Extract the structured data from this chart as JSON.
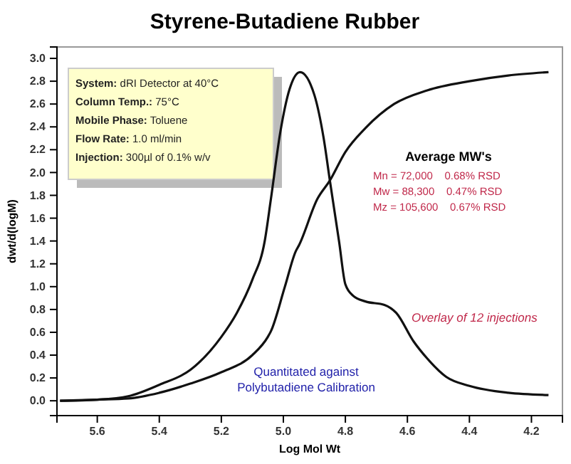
{
  "chart_data": {
    "type": "line",
    "title": "Styrene-Butadiene Rubber",
    "xlabel": "Log Mol Wt",
    "ylabel": "dwt/d(logM)",
    "xlim": [
      5.73,
      4.1
    ],
    "ylim": [
      -0.13,
      3.1
    ],
    "xticks": [
      {
        "value": 5.6,
        "label": "5.6"
      },
      {
        "value": 5.4,
        "label": "5.4"
      },
      {
        "value": 5.2,
        "label": "5.2"
      },
      {
        "value": 5.0,
        "label": "5.0"
      },
      {
        "value": 4.8,
        "label": "4.8"
      },
      {
        "value": 4.6,
        "label": "4.6"
      },
      {
        "value": 4.4,
        "label": "4.4"
      },
      {
        "value": 4.2,
        "label": "4.2"
      }
    ],
    "yticks": [
      {
        "value": 0,
        "label": "0.0"
      },
      {
        "value": 0.2,
        "label": "0.2"
      },
      {
        "value": 0.4,
        "label": "0.4"
      },
      {
        "value": 0.6,
        "label": "0.6"
      },
      {
        "value": 0.8,
        "label": "0.8"
      },
      {
        "value": 1.0,
        "label": "1.0"
      },
      {
        "value": 1.2,
        "label": "1.2"
      },
      {
        "value": 1.4,
        "label": "1.4"
      },
      {
        "value": 1.6,
        "label": "1.6"
      },
      {
        "value": 1.8,
        "label": "1.8"
      },
      {
        "value": 2.0,
        "label": "2.0"
      },
      {
        "value": 2.2,
        "label": "2.2"
      },
      {
        "value": 2.4,
        "label": "2.4"
      },
      {
        "value": 2.6,
        "label": "2.6"
      },
      {
        "value": 2.8,
        "label": "2.8"
      },
      {
        "value": 3.0,
        "label": "3.0"
      }
    ],
    "grid": false,
    "marker": "none",
    "line_style": "solid",
    "series": [
      {
        "color": "#111111",
        "x": [
          5.72,
          5.6,
          5.5,
          5.4,
          5.3,
          5.2,
          5.15,
          5.1,
          5.06,
          5.04,
          5.01,
          4.98,
          4.946,
          4.9,
          4.87,
          4.85,
          4.82,
          4.8,
          4.775,
          4.735,
          4.674,
          4.636,
          4.58,
          4.536,
          4.475,
          4.4,
          4.275,
          4.145
        ],
        "values": [
          0,
          0.01,
          0.04,
          0.14,
          0.27,
          0.56,
          0.77,
          1.06,
          1.4,
          1.77,
          2.35,
          2.73,
          2.88,
          2.68,
          2.3,
          1.93,
          1.39,
          1.02,
          0.92,
          0.87,
          0.84,
          0.77,
          0.52,
          0.37,
          0.21,
          0.13,
          0.07,
          0.05
        ]
      },
      {
        "color": "#111111",
        "x": [
          5.72,
          5.6,
          5.5,
          5.4,
          5.3,
          5.2,
          5.1,
          5.05,
          5.04,
          4.995,
          4.96,
          4.95,
          4.89,
          4.85,
          4.8,
          4.735,
          4.643,
          4.536,
          4.4,
          4.275,
          4.145
        ],
        "values": [
          0,
          0.01,
          0.02,
          0.07,
          0.15,
          0.25,
          0.4,
          0.56,
          0.61,
          1.0,
          1.31,
          1.36,
          1.77,
          1.93,
          2.18,
          2.39,
          2.6,
          2.72,
          2.8,
          2.85,
          2.88
        ]
      }
    ],
    "annotations": [
      "System: dRI Detector at 40°C",
      "Column Temp.: 75°C",
      "Mobile Phase: Toluene",
      "Flow Rate: 1.0 ml/min",
      "Injection: 300µl of 0.1% w/v",
      "Average MW's",
      "Mn = 72,000    0.68% RSD",
      "Mw = 88,300    0.47% RSD",
      "Mz = 105,600    0.67% RSD",
      "Overlay of 12 injections",
      "Quantitated against",
      "Polybutadiene Calibration"
    ]
  }
}
